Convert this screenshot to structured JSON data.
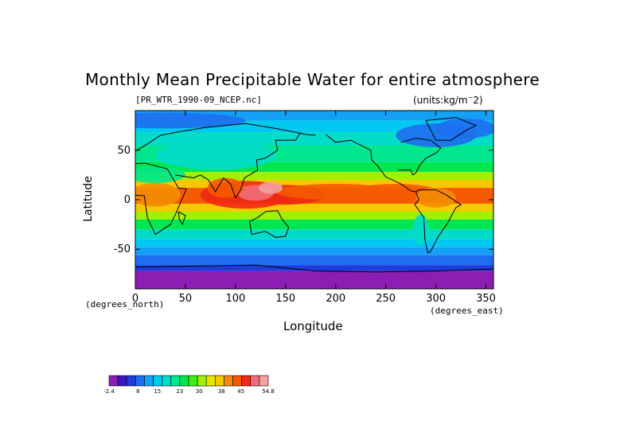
{
  "chart_data": {
    "type": "heatmap",
    "title": "Monthly Mean Precipitable Water for entire atmosphere",
    "subtitle_left": "[PR_WTR_1990-09_NCEP.nc]",
    "subtitle_right": "(units:kg/m^2)",
    "xlabel": "Longitude",
    "ylabel": "Latitude",
    "x_units_note": "(degrees_east)",
    "y_units_note": "(degrees_north)",
    "xlim": [
      0,
      357.5
    ],
    "ylim": [
      -90,
      90
    ],
    "x_ticks": [
      0,
      50,
      100,
      150,
      200,
      250,
      300,
      350
    ],
    "y_ticks": [
      -50,
      0,
      50
    ],
    "colorbar": {
      "levels": [
        -2.4,
        0.8,
        4,
        7.2,
        10.4,
        13.6,
        16.8,
        20,
        23.2,
        26.4,
        29.6,
        32.8,
        36,
        39.2,
        42.4,
        45.6,
        48.8,
        52,
        54.8
      ],
      "tick_labels": [
        "-2.4",
        "8",
        "15",
        "23",
        "30",
        "38",
        "45",
        "54.8"
      ],
      "colors": [
        "#8c1eb4",
        "#3c14c8",
        "#1e3cdc",
        "#1e6ef0",
        "#14a0f5",
        "#00c8f0",
        "#00dcc8",
        "#00e68c",
        "#00e650",
        "#3cf014",
        "#a0f000",
        "#e6e600",
        "#f5c800",
        "#f58c00",
        "#f55a00",
        "#f02814",
        "#f06e78",
        "#f5a0a0"
      ]
    }
  }
}
